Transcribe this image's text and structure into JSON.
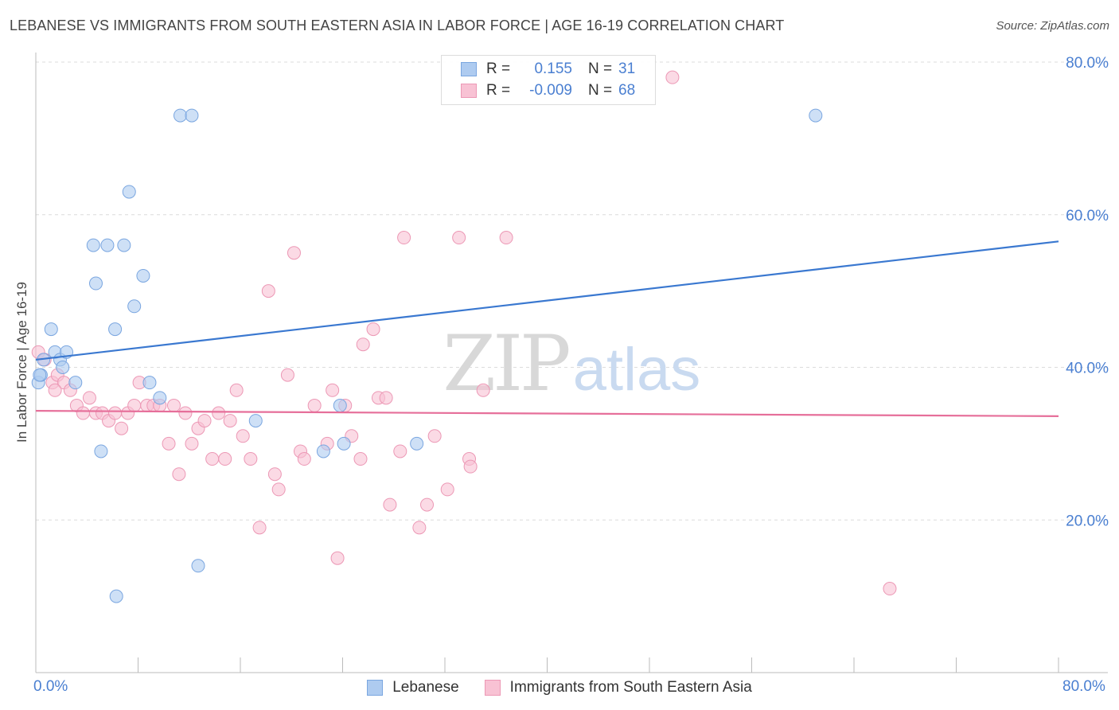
{
  "title": "LEBANESE VS IMMIGRANTS FROM SOUTH EASTERN ASIA IN LABOR FORCE | AGE 16-19 CORRELATION CHART",
  "source": "Source: ZipAtlas.com",
  "watermark": {
    "zip": "ZIP",
    "atlas": "atlas"
  },
  "legend_stats": [
    {
      "r_label": "R =",
      "r_value": "0.155",
      "n_label": "N =",
      "n_value": "31",
      "color": "#aecbf0",
      "border": "#7aa6e0"
    },
    {
      "r_label": "R =",
      "r_value": "-0.009",
      "n_label": "N =",
      "n_value": "68",
      "color": "#f8c2d4",
      "border": "#ec98b5"
    }
  ],
  "chart_data": {
    "type": "scatter",
    "title": "LEBANESE VS IMMIGRANTS FROM SOUTH EASTERN ASIA IN LABOR FORCE | AGE 16-19 CORRELATION CHART",
    "xlabel": "",
    "ylabel": "In Labor Force | Age 16-19",
    "xlim": [
      0,
      0.8
    ],
    "ylim": [
      0,
      0.8
    ],
    "x_tick_labels": [
      "0.0%",
      "80.0%"
    ],
    "y_tick_labels": [
      "20.0%",
      "40.0%",
      "60.0%",
      "80.0%"
    ],
    "y_ticks": [
      0.2,
      0.4,
      0.6,
      0.8
    ],
    "grid": true,
    "legend_position": "bottom-center",
    "series": [
      {
        "name": "Lebanese",
        "color": "#aecbf0",
        "edge": "#7aa6e0",
        "trend_color": "#3a78d0",
        "trend": [
          [
            0,
            0.41
          ],
          [
            0.8,
            0.565
          ]
        ],
        "points": [
          [
            0.002,
            0.38
          ],
          [
            0.004,
            0.39
          ],
          [
            0.006,
            0.41
          ],
          [
            0.012,
            0.45
          ],
          [
            0.015,
            0.42
          ],
          [
            0.019,
            0.41
          ],
          [
            0.021,
            0.4
          ],
          [
            0.024,
            0.42
          ],
          [
            0.031,
            0.38
          ],
          [
            0.045,
            0.56
          ],
          [
            0.047,
            0.51
          ],
          [
            0.051,
            0.29
          ],
          [
            0.056,
            0.56
          ],
          [
            0.062,
            0.45
          ],
          [
            0.063,
            0.1
          ],
          [
            0.069,
            0.56
          ],
          [
            0.073,
            0.63
          ],
          [
            0.077,
            0.48
          ],
          [
            0.084,
            0.52
          ],
          [
            0.089,
            0.38
          ],
          [
            0.097,
            0.36
          ],
          [
            0.113,
            0.73
          ],
          [
            0.122,
            0.73
          ],
          [
            0.127,
            0.14
          ],
          [
            0.172,
            0.33
          ],
          [
            0.225,
            0.29
          ],
          [
            0.238,
            0.35
          ],
          [
            0.241,
            0.3
          ],
          [
            0.298,
            0.3
          ],
          [
            0.61,
            0.73
          ],
          [
            0.003,
            0.39
          ]
        ]
      },
      {
        "name": "Immigrants from South Eastern Asia",
        "color": "#f8c2d4",
        "edge": "#ec98b5",
        "trend_color": "#e66f9a",
        "trend": [
          [
            0,
            0.343
          ],
          [
            0.8,
            0.336
          ]
        ],
        "points": [
          [
            0.002,
            0.42
          ],
          [
            0.007,
            0.41
          ],
          [
            0.013,
            0.38
          ],
          [
            0.017,
            0.39
          ],
          [
            0.022,
            0.38
          ],
          [
            0.027,
            0.37
          ],
          [
            0.032,
            0.35
          ],
          [
            0.037,
            0.34
          ],
          [
            0.042,
            0.36
          ],
          [
            0.047,
            0.34
          ],
          [
            0.052,
            0.34
          ],
          [
            0.057,
            0.33
          ],
          [
            0.062,
            0.34
          ],
          [
            0.067,
            0.32
          ],
          [
            0.072,
            0.34
          ],
          [
            0.077,
            0.35
          ],
          [
            0.081,
            0.38
          ],
          [
            0.087,
            0.35
          ],
          [
            0.092,
            0.35
          ],
          [
            0.097,
            0.35
          ],
          [
            0.104,
            0.3
          ],
          [
            0.108,
            0.35
          ],
          [
            0.112,
            0.26
          ],
          [
            0.117,
            0.34
          ],
          [
            0.122,
            0.3
          ],
          [
            0.127,
            0.32
          ],
          [
            0.132,
            0.33
          ],
          [
            0.138,
            0.28
          ],
          [
            0.143,
            0.34
          ],
          [
            0.148,
            0.28
          ],
          [
            0.152,
            0.33
          ],
          [
            0.157,
            0.37
          ],
          [
            0.162,
            0.31
          ],
          [
            0.168,
            0.28
          ],
          [
            0.175,
            0.19
          ],
          [
            0.182,
            0.5
          ],
          [
            0.187,
            0.26
          ],
          [
            0.19,
            0.24
          ],
          [
            0.197,
            0.39
          ],
          [
            0.202,
            0.55
          ],
          [
            0.207,
            0.29
          ],
          [
            0.21,
            0.28
          ],
          [
            0.218,
            0.35
          ],
          [
            0.228,
            0.3
          ],
          [
            0.232,
            0.37
          ],
          [
            0.236,
            0.15
          ],
          [
            0.242,
            0.35
          ],
          [
            0.247,
            0.31
          ],
          [
            0.254,
            0.28
          ],
          [
            0.256,
            0.43
          ],
          [
            0.264,
            0.45
          ],
          [
            0.268,
            0.36
          ],
          [
            0.274,
            0.36
          ],
          [
            0.277,
            0.22
          ],
          [
            0.285,
            0.29
          ],
          [
            0.288,
            0.57
          ],
          [
            0.3,
            0.19
          ],
          [
            0.306,
            0.22
          ],
          [
            0.312,
            0.31
          ],
          [
            0.322,
            0.24
          ],
          [
            0.331,
            0.57
          ],
          [
            0.339,
            0.28
          ],
          [
            0.34,
            0.27
          ],
          [
            0.35,
            0.37
          ],
          [
            0.368,
            0.57
          ],
          [
            0.498,
            0.78
          ],
          [
            0.668,
            0.11
          ],
          [
            0.015,
            0.37
          ]
        ]
      }
    ]
  }
}
